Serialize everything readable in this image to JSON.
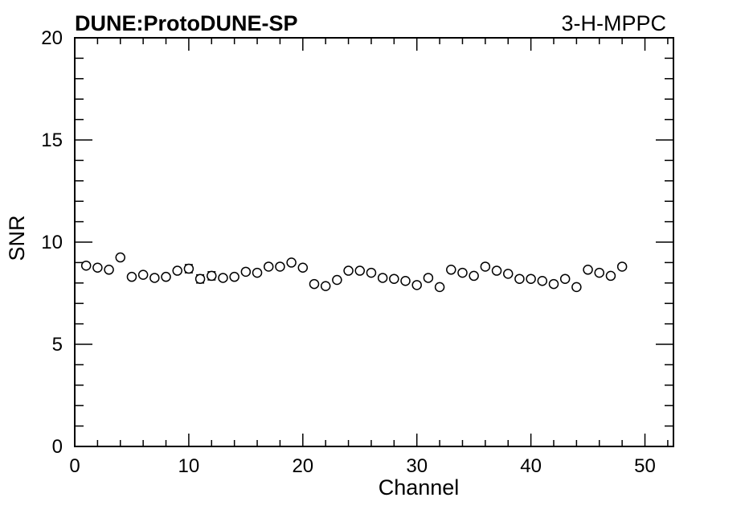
{
  "chart_data": {
    "type": "scatter",
    "title": "DUNE:ProtoDUNE-SP",
    "subtitle": "3-H-MPPC",
    "xlabel": "Channel",
    "ylabel": "SNR",
    "xlim": [
      0,
      52.5
    ],
    "ylim": [
      0,
      20
    ],
    "x_ticks": [
      0,
      10,
      20,
      30,
      40,
      50
    ],
    "y_ticks": [
      0,
      5,
      10,
      15,
      20
    ],
    "x_tick_labels": [
      "0",
      "10",
      "20",
      "30",
      "40",
      "50"
    ],
    "y_tick_labels": [
      "0",
      "5",
      "10",
      "15",
      "20"
    ],
    "grid": false,
    "marker": "open-circle",
    "color": "#000000",
    "series": [
      {
        "x": [
          1,
          2,
          3,
          4,
          5,
          6,
          7,
          8,
          9,
          10,
          11,
          12,
          13,
          14,
          15,
          16,
          17,
          18,
          19,
          20,
          21,
          22,
          23,
          24,
          25,
          26,
          27,
          28,
          29,
          30,
          31,
          32,
          33,
          34,
          35,
          36,
          37,
          38,
          39,
          40,
          41,
          42,
          43,
          44,
          45,
          46,
          47,
          48
        ],
        "y": [
          8.85,
          8.75,
          8.65,
          9.25,
          8.3,
          8.4,
          8.25,
          8.3,
          8.6,
          8.7,
          8.2,
          8.35,
          8.25,
          8.3,
          8.55,
          8.5,
          8.8,
          8.8,
          9.0,
          8.75,
          7.95,
          7.85,
          8.15,
          8.6,
          8.6,
          8.5,
          8.25,
          8.2,
          8.1,
          7.9,
          8.25,
          7.8,
          8.65,
          8.5,
          8.35,
          8.8,
          8.6,
          8.45,
          8.2,
          8.2,
          8.1,
          7.95,
          8.2,
          7.8,
          8.65,
          8.5,
          8.35,
          8.8
        ],
        "y_err": [
          0,
          0,
          0,
          0,
          0,
          0,
          0,
          0,
          0,
          0.2,
          0.2,
          0.2,
          0,
          0,
          0,
          0,
          0,
          0,
          0,
          0,
          0,
          0,
          0,
          0,
          0,
          0,
          0,
          0,
          0,
          0,
          0,
          0,
          0,
          0,
          0,
          0,
          0,
          0,
          0,
          0,
          0,
          0,
          0,
          0,
          0,
          0,
          0,
          0
        ]
      }
    ]
  }
}
